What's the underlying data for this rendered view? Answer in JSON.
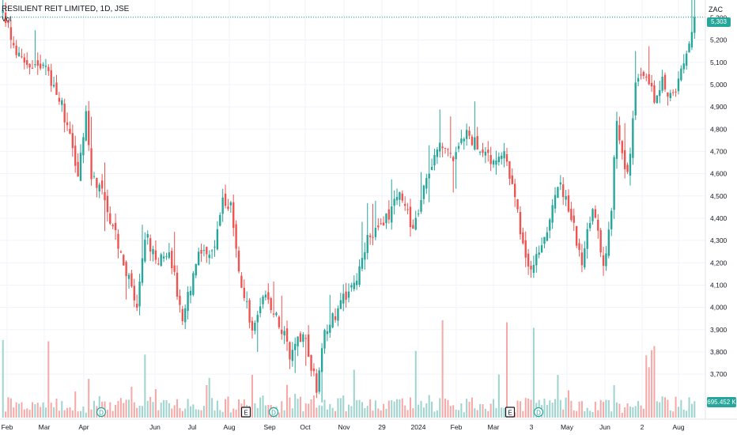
{
  "header": {
    "symbol": "RESILIENT REIT LIMITED, 1D, JSE",
    "vol_label": "Vol",
    "currency": "ZAC"
  },
  "last_price_label": "5,303",
  "last_volume_label": "695.452 K",
  "colors": {
    "up": "#26a69a",
    "down": "#ef5350",
    "up_vol": "#9fd4cf",
    "down_vol": "#f6a9a7",
    "grid": "#f0f3fa",
    "text": "#131722",
    "last_line": "#26a69a"
  },
  "chart_data": {
    "type": "candlestick",
    "title": "RESILIENT REIT LIMITED, 1D, JSE",
    "currency": "ZAC",
    "y_axis": {
      "ticks": [
        5300,
        5200,
        5100,
        5000,
        4900,
        4800,
        4700,
        4600,
        4500,
        4400,
        4300,
        4200,
        4100,
        4000,
        3900,
        3800,
        3700
      ],
      "tick_labels": [
        "5,300",
        "5,200",
        "5,100",
        "5,000",
        "4,900",
        "4,800",
        "4,700",
        "4,600",
        "4,500",
        "4,400",
        "4,300",
        "4,200",
        "4,100",
        "4,000",
        "3,900",
        "3,800",
        "3,700"
      ],
      "range": [
        3530,
        5410
      ]
    },
    "x_axis": {
      "labels": [
        "Feb",
        "Mar",
        "Apr",
        "Jun",
        "Jul",
        "Aug",
        "Sep",
        "Oct",
        "Nov",
        "29",
        "2024",
        "Feb",
        "Mar",
        "3",
        "May",
        "Jun",
        "2",
        "Aug"
      ]
    },
    "last_price": 5303,
    "last_volume": "695.452 K",
    "trend_points": [
      {
        "t": 0,
        "close": 5330
      },
      {
        "t": 5,
        "close": 5150
      },
      {
        "t": 10,
        "close": 5090
      },
      {
        "t": 15,
        "close": 5080
      },
      {
        "t": 20,
        "close": 4980
      },
      {
        "t": 25,
        "close": 4780
      },
      {
        "t": 28,
        "close": 4560
      },
      {
        "t": 31,
        "close": 4880
      },
      {
        "t": 33,
        "close": 4600
      },
      {
        "t": 38,
        "close": 4480
      },
      {
        "t": 45,
        "close": 4210
      },
      {
        "t": 50,
        "close": 4000
      },
      {
        "t": 53,
        "close": 4330
      },
      {
        "t": 58,
        "close": 4200
      },
      {
        "t": 62,
        "close": 4250
      },
      {
        "t": 67,
        "close": 3960
      },
      {
        "t": 73,
        "close": 4240
      },
      {
        "t": 79,
        "close": 4280
      },
      {
        "t": 82,
        "close": 4500
      },
      {
        "t": 85,
        "close": 4450
      },
      {
        "t": 88,
        "close": 4150
      },
      {
        "t": 93,
        "close": 3900
      },
      {
        "t": 98,
        "close": 4060
      },
      {
        "t": 103,
        "close": 3940
      },
      {
        "t": 107,
        "close": 3790
      },
      {
        "t": 112,
        "close": 3880
      },
      {
        "t": 117,
        "close": 3640
      },
      {
        "t": 120,
        "close": 3880
      },
      {
        "t": 126,
        "close": 4020
      },
      {
        "t": 131,
        "close": 4100
      },
      {
        "t": 136,
        "close": 4300
      },
      {
        "t": 142,
        "close": 4380
      },
      {
        "t": 148,
        "close": 4500
      },
      {
        "t": 153,
        "close": 4350
      },
      {
        "t": 158,
        "close": 4570
      },
      {
        "t": 163,
        "close": 4720
      },
      {
        "t": 168,
        "close": 4680
      },
      {
        "t": 173,
        "close": 4780
      },
      {
        "t": 178,
        "close": 4720
      },
      {
        "t": 184,
        "close": 4640
      },
      {
        "t": 187,
        "close": 4700
      },
      {
        "t": 192,
        "close": 4420
      },
      {
        "t": 196,
        "close": 4170
      },
      {
        "t": 200,
        "close": 4230
      },
      {
        "t": 204,
        "close": 4400
      },
      {
        "t": 208,
        "close": 4560
      },
      {
        "t": 212,
        "close": 4410
      },
      {
        "t": 216,
        "close": 4200
      },
      {
        "t": 220,
        "close": 4460
      },
      {
        "t": 224,
        "close": 4170
      },
      {
        "t": 227,
        "close": 4450
      },
      {
        "t": 229,
        "close": 4840
      },
      {
        "t": 231,
        "close": 4700
      },
      {
        "t": 233,
        "close": 4580
      },
      {
        "t": 236,
        "close": 4980
      },
      {
        "t": 240,
        "close": 5060
      },
      {
        "t": 243,
        "close": 4920
      },
      {
        "t": 246,
        "close": 5020
      },
      {
        "t": 249,
        "close": 4950
      },
      {
        "t": 252,
        "close": 5000
      },
      {
        "t": 255,
        "close": 5150
      },
      {
        "t": 258,
        "close": 5303
      }
    ],
    "volume_markers": [
      {
        "label": "D",
        "pos": 128
      },
      {
        "label": "E",
        "pos": 311
      },
      {
        "label": "D",
        "pos": 346
      },
      {
        "label": "E",
        "pos": 645
      },
      {
        "label": "D",
        "pos": 681
      }
    ]
  }
}
